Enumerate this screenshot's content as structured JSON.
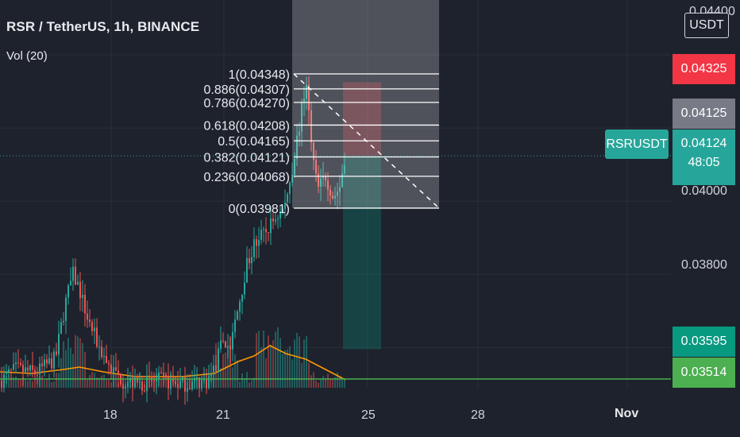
{
  "header": {
    "title": "RSR / TetherUS, 1h, BINANCE",
    "indicator": "Vol (20)"
  },
  "currency_button": "USDT",
  "price_axis": {
    "ticks": [
      "0.04400",
      "0.04000",
      "0.03800"
    ]
  },
  "badges": {
    "target_price": "0.04325",
    "target_color": "#f23645",
    "high_price": "0.04125",
    "high_color": "#787b86",
    "symbol": "RSRUSDT",
    "last_price": "0.04124",
    "countdown": "48:05",
    "last_color": "#26a69a",
    "stop_price": "0.03595",
    "stop_color": "#089981",
    "line_price": "0.03514",
    "line_color": "#4caf50"
  },
  "time_axis": {
    "ticks": [
      "18",
      "21",
      "25",
      "28",
      "Nov"
    ]
  },
  "chart_data": {
    "type": "candlestick",
    "symbol": "RSR / TetherUS",
    "interval": "1h",
    "exchange": "BINANCE",
    "ylim": [
      0.0349,
      0.0455
    ],
    "last_price": 0.04124,
    "horizontal_line": 0.03514,
    "fib_levels": [
      {
        "ratio": "1",
        "price": 0.04348,
        "label": "1(0.04348)"
      },
      {
        "ratio": "0.886",
        "price": 0.04307,
        "label": "0.886(0.04307)"
      },
      {
        "ratio": "0.786",
        "price": 0.0427,
        "label": "0.786(0.04270)"
      },
      {
        "ratio": "0.618",
        "price": 0.04208,
        "label": "0.618(0.04208)"
      },
      {
        "ratio": "0.5",
        "price": 0.04165,
        "label": "0.5(0.04165)"
      },
      {
        "ratio": "0.382",
        "price": 0.04121,
        "label": "0.382(0.04121)"
      },
      {
        "ratio": "0.236",
        "price": 0.04068,
        "label": "0.236(0.04068)"
      },
      {
        "ratio": "0",
        "price": 0.03981,
        "label": "0(0.03981)"
      }
    ],
    "position_tool": {
      "entry": 0.04124,
      "target": 0.04325,
      "stop": 0.03595
    },
    "price_path": [
      [
        0,
        0.0351
      ],
      [
        20,
        0.0354
      ],
      [
        45,
        0.0353
      ],
      [
        70,
        0.0357
      ],
      [
        82,
        0.0372
      ],
      [
        92,
        0.038
      ],
      [
        100,
        0.0376
      ],
      [
        110,
        0.0368
      ],
      [
        125,
        0.036
      ],
      [
        140,
        0.0354
      ],
      [
        155,
        0.0351
      ],
      [
        175,
        0.035
      ],
      [
        200,
        0.0351
      ],
      [
        230,
        0.035
      ],
      [
        262,
        0.0351
      ],
      [
        272,
        0.0355
      ],
      [
        280,
        0.0362
      ],
      [
        290,
        0.036
      ],
      [
        300,
        0.0371
      ],
      [
        310,
        0.0382
      ],
      [
        320,
        0.0388
      ],
      [
        333,
        0.0391
      ],
      [
        345,
        0.0395
      ],
      [
        358,
        0.0398
      ],
      [
        368,
        0.0409
      ],
      [
        378,
        0.0422
      ],
      [
        386,
        0.0433
      ],
      [
        392,
        0.0415
      ],
      [
        400,
        0.0403
      ],
      [
        410,
        0.0407
      ],
      [
        420,
        0.0401
      ],
      [
        428,
        0.0404
      ],
      [
        434,
        0.0412
      ]
    ]
  }
}
